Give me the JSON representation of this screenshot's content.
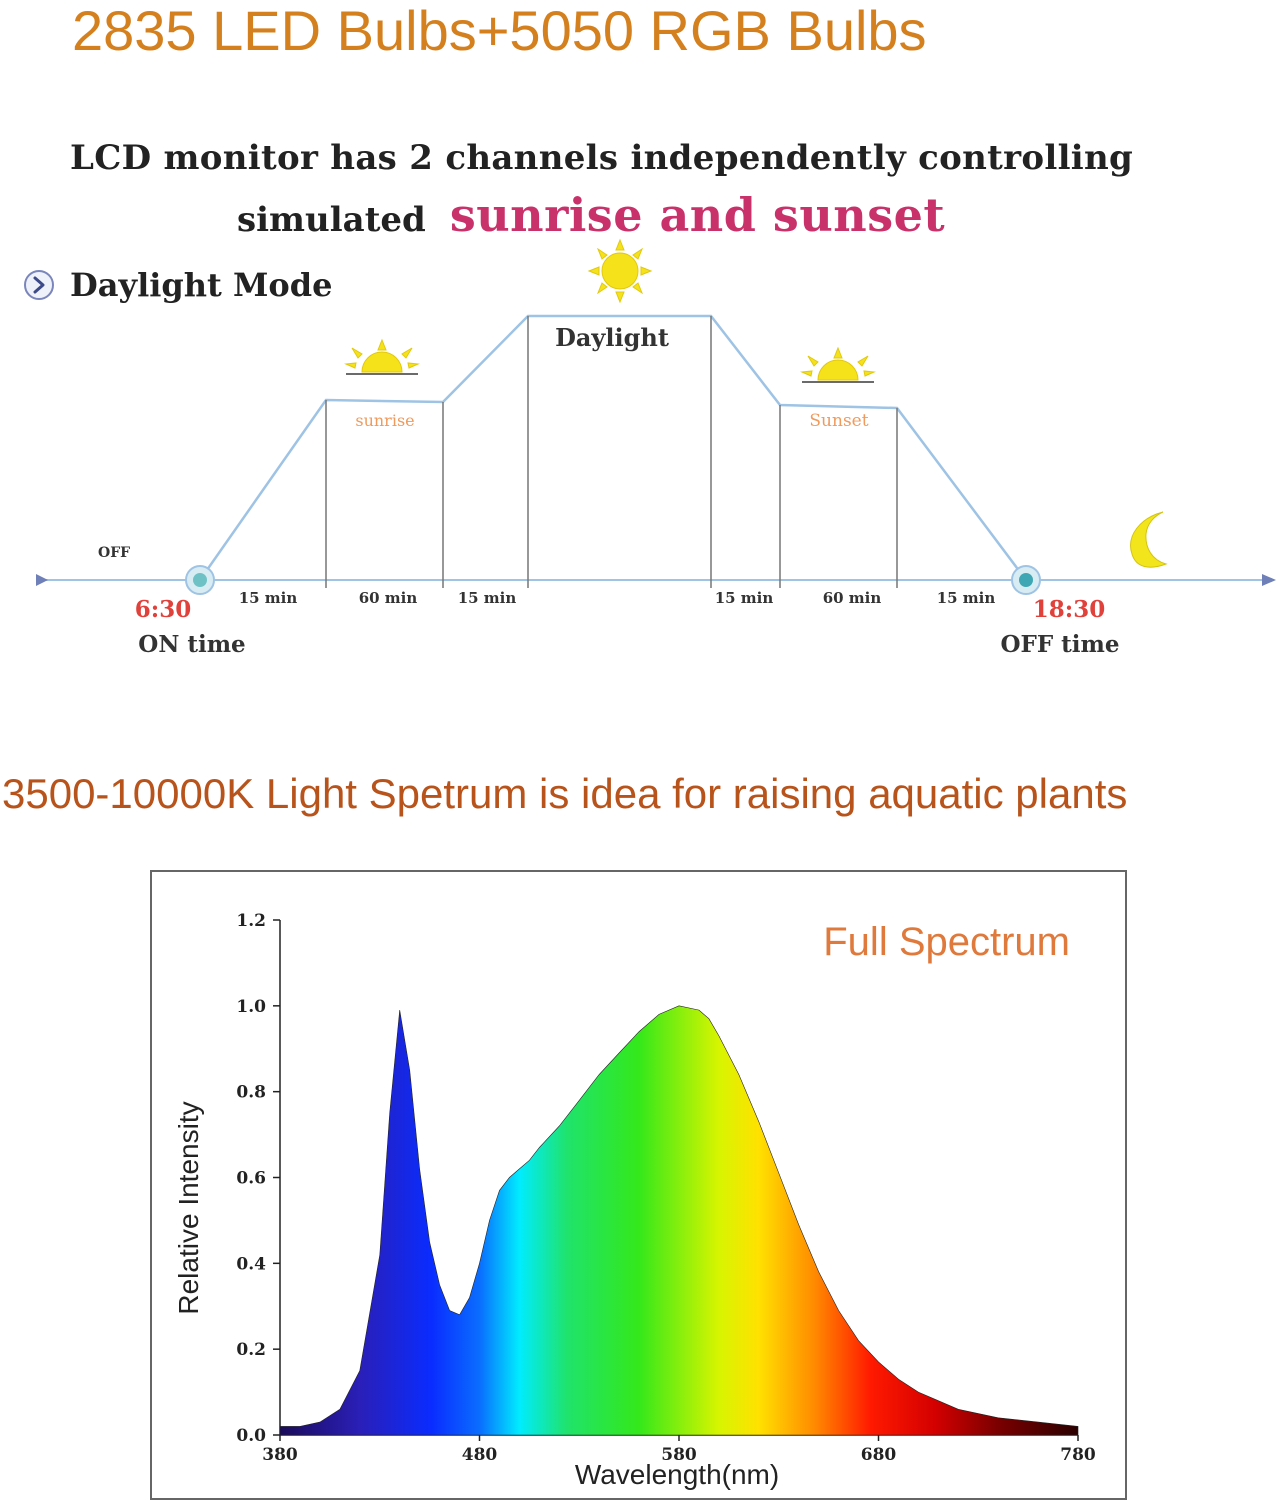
{
  "header": {
    "title": "2835 LED Bulbs+5050 RGB Bulbs"
  },
  "lcd": {
    "line1": "LCD monitor has 2 channels independently controlling",
    "line2": "simulated",
    "highlight": "sunrise and sunset"
  },
  "mode": {
    "label": "Daylight Mode",
    "icon": "chevron-right-circle-icon"
  },
  "schedule": {
    "off_label": "OFF",
    "stages": {
      "sunrise": "sunrise",
      "daylight": "Daylight",
      "sunset": "Sunset"
    },
    "durations": [
      "15 min",
      "60 min",
      "15 min",
      "15 min",
      "60 min",
      "15 min"
    ],
    "on_time": "6:30",
    "on_label": "ON time",
    "off_time": "18:30",
    "off_time_label": "OFF time",
    "icons": [
      "sun-icon",
      "sunrise-icon",
      "sunset-icon",
      "moon-icon"
    ],
    "colors": {
      "line": "#9ec3e4",
      "time": "#e0413a",
      "stage_label": "#f09a5c",
      "sun": "#f5e21b"
    }
  },
  "spectrum": {
    "title": "3500-10000K Light Spetrum is idea for raising aquatic plants"
  },
  "chart_data": {
    "type": "area",
    "title": "Full Spectrum",
    "xlabel": "Wavelength(nm)",
    "ylabel": "Relative Intensity",
    "xlim": [
      380,
      780
    ],
    "ylim": [
      0,
      1.2
    ],
    "x_ticks": [
      "380",
      "480",
      "580",
      "680",
      "780"
    ],
    "y_ticks": [
      "0.0",
      "0.2",
      "0.4",
      "0.6",
      "0.8",
      "1.0",
      "1.2"
    ],
    "title_color": "#e07a3c",
    "series": [
      {
        "x": [
          380,
          390,
          400,
          410,
          420,
          430,
          435,
          440,
          445,
          450,
          455,
          460,
          465,
          470,
          475,
          480,
          485,
          490,
          495,
          500,
          505,
          510,
          520,
          530,
          540,
          550,
          560,
          570,
          580,
          590,
          595,
          600,
          610,
          620,
          630,
          640,
          650,
          660,
          670,
          680,
          690,
          700,
          720,
          740,
          760,
          780
        ],
        "values": [
          0.02,
          0.02,
          0.03,
          0.06,
          0.15,
          0.42,
          0.75,
          0.99,
          0.85,
          0.62,
          0.45,
          0.35,
          0.29,
          0.28,
          0.32,
          0.4,
          0.5,
          0.57,
          0.6,
          0.62,
          0.64,
          0.67,
          0.72,
          0.78,
          0.84,
          0.89,
          0.94,
          0.98,
          1.0,
          0.99,
          0.97,
          0.93,
          0.84,
          0.73,
          0.61,
          0.49,
          0.38,
          0.29,
          0.22,
          0.17,
          0.13,
          0.1,
          0.06,
          0.04,
          0.03,
          0.02
        ]
      }
    ]
  }
}
